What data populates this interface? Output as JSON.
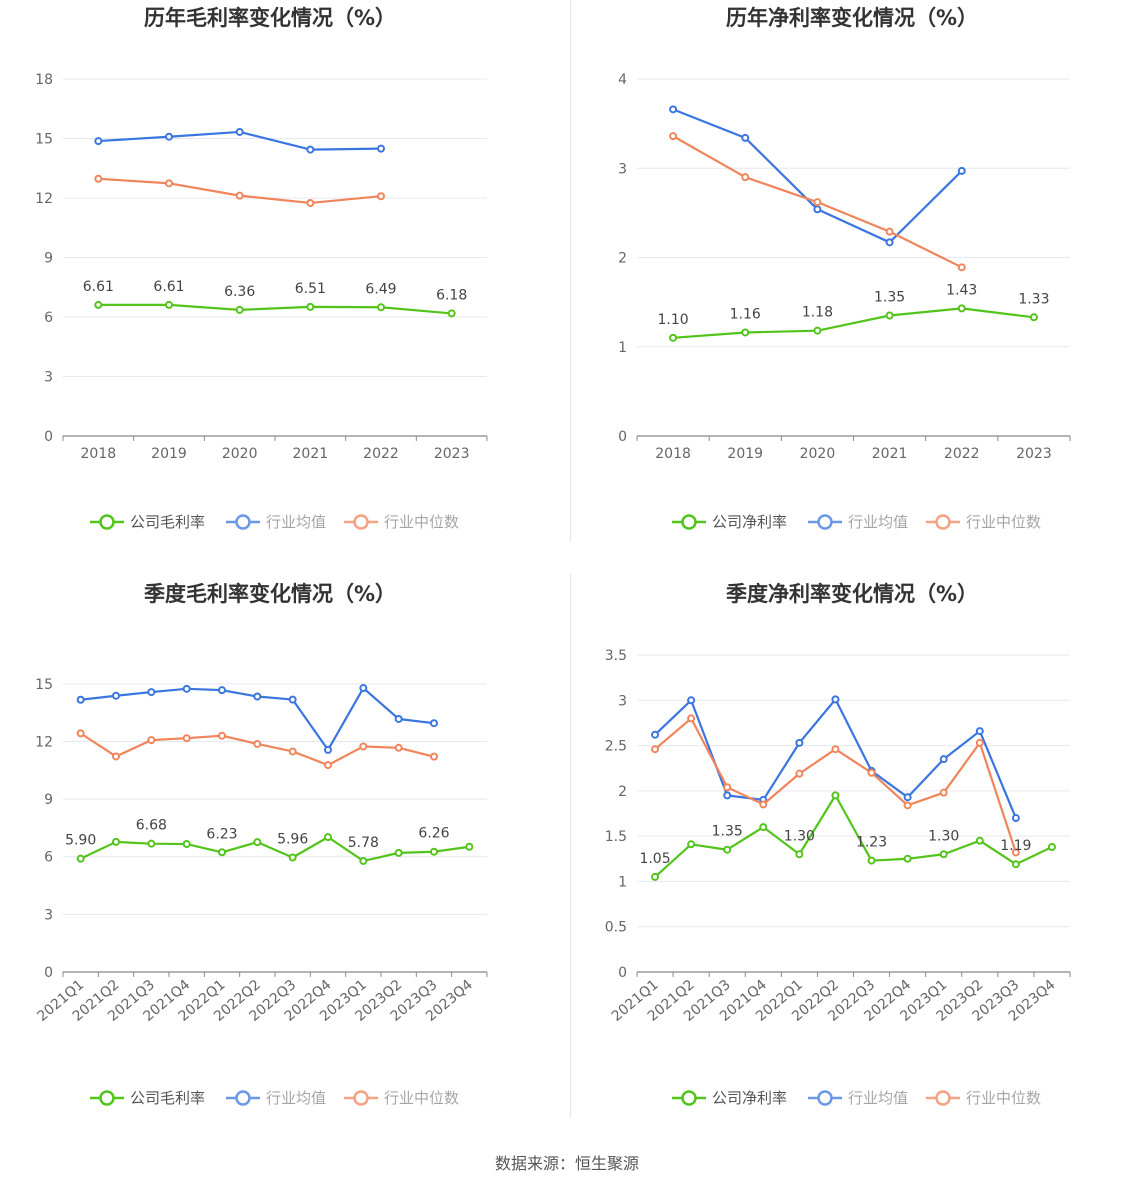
{
  "colors": {
    "company": "#52c41a",
    "avg": "#3a75e0",
    "median": "#f0845a",
    "grid": "#e6e8f0",
    "axis": "#888888"
  },
  "chart_data": [
    {
      "type": "line",
      "title": "历年毛利率变化情况（%）",
      "categories": [
        "2018",
        "2019",
        "2020",
        "2021",
        "2022",
        "2023"
      ],
      "ylim": [
        0,
        18
      ],
      "yticks": [
        "0",
        "3",
        "6",
        "9",
        "12",
        "15",
        "18"
      ],
      "series": [
        {
          "name": "公司毛利率",
          "values": [
            6.61,
            6.61,
            6.36,
            6.51,
            6.49,
            6.18
          ],
          "labels": [
            "6.61",
            "6.61",
            "6.36",
            "6.51",
            "6.49",
            "6.18"
          ]
        },
        {
          "name": "行业均值",
          "values": [
            14.87,
            15.09,
            15.33,
            14.44,
            14.49,
            null
          ]
        },
        {
          "name": "行业中位数",
          "values": [
            12.97,
            12.74,
            12.12,
            11.75,
            12.09,
            null
          ]
        }
      ],
      "legend": "bottom"
    },
    {
      "type": "line",
      "title": "历年净利率变化情况（%）",
      "categories": [
        "2018",
        "2019",
        "2020",
        "2021",
        "2022",
        "2023"
      ],
      "ylim": [
        0,
        4
      ],
      "yticks": [
        "0",
        "1",
        "2",
        "3",
        "4"
      ],
      "series": [
        {
          "name": "公司净利率",
          "values": [
            1.1,
            1.16,
            1.18,
            1.35,
            1.43,
            1.33
          ],
          "labels": [
            "1.10",
            "1.16",
            "1.18",
            "1.35",
            "1.43",
            "1.33"
          ]
        },
        {
          "name": "行业均值",
          "values": [
            3.66,
            3.34,
            2.54,
            2.17,
            2.97,
            null
          ]
        },
        {
          "name": "行业中位数",
          "values": [
            3.36,
            2.9,
            2.62,
            2.29,
            1.89,
            null
          ]
        }
      ],
      "legend": "bottom"
    },
    {
      "type": "line",
      "title": "季度毛利率变化情况（%）",
      "categories": [
        "2021Q1",
        "2021Q2",
        "2021Q3",
        "2021Q4",
        "2022Q1",
        "2022Q2",
        "2022Q3",
        "2022Q4",
        "2023Q1",
        "2023Q2",
        "2023Q3",
        "2023Q4"
      ],
      "ylim": [
        0,
        16.5
      ],
      "yticks": [
        "0",
        "3",
        "6",
        "9",
        "12",
        "15"
      ],
      "series": [
        {
          "name": "公司毛利率",
          "values": [
            5.9,
            6.77,
            6.68,
            6.66,
            6.23,
            6.76,
            5.96,
            7.02,
            5.78,
            6.2,
            6.26,
            6.52
          ],
          "labels": [
            "5.90",
            null,
            "6.68",
            null,
            "6.23",
            null,
            "5.96",
            null,
            "5.78",
            null,
            "6.26",
            null
          ]
        },
        {
          "name": "行业均值",
          "values": [
            14.17,
            14.38,
            14.57,
            14.74,
            14.67,
            14.34,
            14.18,
            11.56,
            14.78,
            13.17,
            12.95,
            null
          ]
        },
        {
          "name": "行业中位数",
          "values": [
            12.42,
            11.22,
            12.07,
            12.17,
            12.3,
            11.87,
            11.48,
            10.77,
            11.74,
            11.67,
            11.21,
            null
          ]
        }
      ],
      "legend": "bottom"
    },
    {
      "type": "line",
      "title": "季度净利率变化情况（%）",
      "categories": [
        "2021Q1",
        "2021Q2",
        "2021Q3",
        "2021Q4",
        "2022Q1",
        "2022Q2",
        "2022Q3",
        "2022Q4",
        "2023Q1",
        "2023Q2",
        "2023Q3",
        "2023Q4"
      ],
      "ylim": [
        0,
        3.5
      ],
      "yticks": [
        "0",
        "0.5",
        "1",
        "1.5",
        "2",
        "2.5",
        "3",
        "3.5"
      ],
      "series": [
        {
          "name": "公司净利率",
          "values": [
            1.05,
            1.41,
            1.35,
            1.6,
            1.3,
            1.95,
            1.23,
            1.25,
            1.3,
            1.45,
            1.19,
            1.38
          ],
          "labels": [
            "1.05",
            null,
            "1.35",
            null,
            "1.30",
            null,
            "1.23",
            null,
            "1.30",
            null,
            "1.19",
            null
          ]
        },
        {
          "name": "行业均值",
          "values": [
            2.62,
            3.0,
            1.95,
            1.9,
            2.53,
            3.01,
            2.22,
            1.93,
            2.35,
            2.66,
            1.7,
            null
          ]
        },
        {
          "name": "行业中位数",
          "values": [
            2.46,
            2.8,
            2.04,
            1.85,
            2.19,
            2.46,
            2.2,
            1.84,
            1.98,
            2.53,
            1.32,
            null
          ]
        }
      ],
      "legend": "bottom"
    }
  ],
  "source": "数据来源：恒生聚源"
}
